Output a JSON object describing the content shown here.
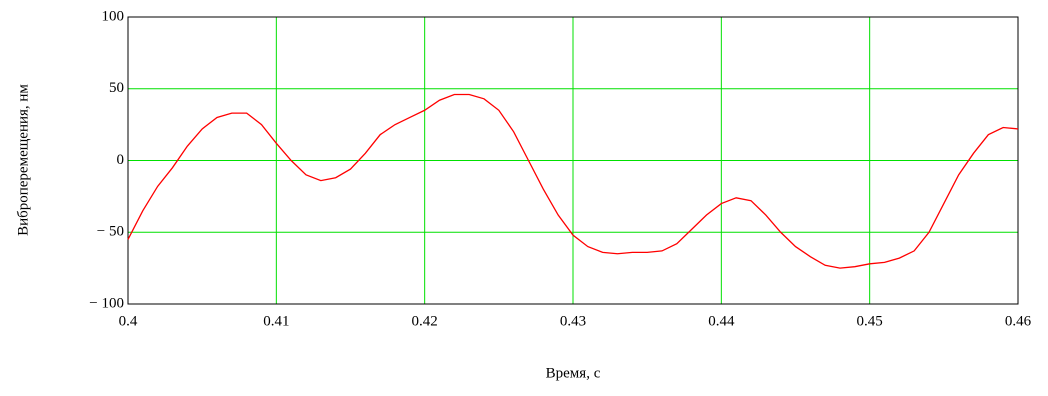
{
  "chart_data": {
    "type": "line",
    "xlabel": "Время, с",
    "ylabel": "Виброперемещения, нм",
    "x": [
      0.4,
      0.401,
      0.402,
      0.403,
      0.404,
      0.405,
      0.406,
      0.407,
      0.408,
      0.409,
      0.41,
      0.411,
      0.412,
      0.413,
      0.414,
      0.415,
      0.416,
      0.417,
      0.418,
      0.419,
      0.42,
      0.421,
      0.422,
      0.423,
      0.424,
      0.425,
      0.426,
      0.427,
      0.428,
      0.429,
      0.43,
      0.431,
      0.432,
      0.433,
      0.434,
      0.435,
      0.436,
      0.437,
      0.438,
      0.439,
      0.44,
      0.441,
      0.442,
      0.443,
      0.444,
      0.445,
      0.446,
      0.447,
      0.448,
      0.449,
      0.45,
      0.451,
      0.452,
      0.453,
      0.454,
      0.455,
      0.456,
      0.457,
      0.458,
      0.459,
      0.46
    ],
    "series": [
      {
        "color": "#ff0000",
        "values": [
          -55,
          -35,
          -18,
          -5,
          10,
          22,
          30,
          33,
          33,
          25,
          12,
          0,
          -10,
          -14,
          -12,
          -6,
          5,
          18,
          25,
          30,
          35,
          42,
          46,
          46,
          43,
          35,
          20,
          0,
          -20,
          -38,
          -52,
          -60,
          -64,
          -65,
          -64,
          -64,
          -63,
          -58,
          -48,
          -38,
          -30,
          -26,
          -28,
          -38,
          -50,
          -60,
          -67,
          -73,
          -75,
          -74,
          -72,
          -71,
          -68,
          -63,
          -50,
          -30,
          -10,
          5,
          18,
          23,
          22
        ]
      }
    ],
    "xlim": [
      0.4,
      0.46
    ],
    "xticks": [
      0.4,
      0.41,
      0.42,
      0.43,
      0.44,
      0.45,
      0.46
    ],
    "ylim": [
      -100,
      100
    ],
    "yticks": [
      {
        "value": -100,
        "label": "− 100"
      },
      {
        "value": -50,
        "label": "− 50"
      },
      0,
      50,
      100
    ],
    "grid": true,
    "grid_color": "#00e000"
  }
}
